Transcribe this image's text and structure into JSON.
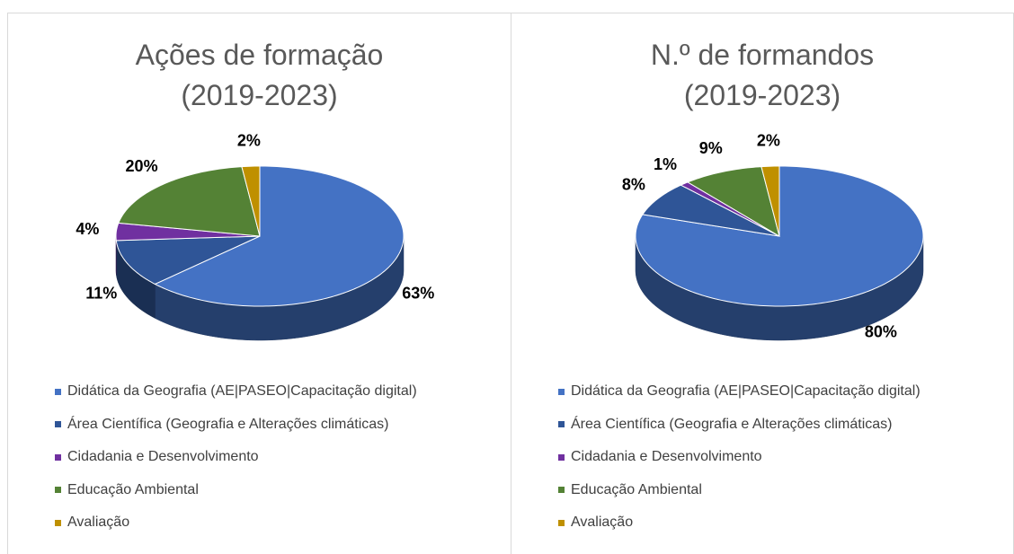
{
  "chart_data": [
    {
      "type": "pie",
      "title": "Ações de formação (2019-2023)",
      "categories": [
        "Didática da Geografia (AE|PASEO|Capacitação digital)",
        "Área Científica (Geografia e Alterações climáticas)",
        "Cidadania e Desenvolvimento",
        "Educação Ambiental",
        "Avaliação"
      ],
      "values": [
        63,
        11,
        4,
        20,
        2
      ],
      "value_labels": [
        "63%",
        "11%",
        "4%",
        "20%",
        "2%"
      ],
      "colors": [
        "#4472c4",
        "#2f5597",
        "#7030a0",
        "#548235",
        "#bf9000"
      ]
    },
    {
      "type": "pie",
      "title": "N.º de formandos (2019-2023)",
      "categories": [
        "Didática da Geografia (AE|PASEO|Capacitação digital)",
        "Área Científica (Geografia e Alterações climáticas)",
        "Cidadania e Desenvolvimento",
        "Educação Ambiental",
        "Avaliação"
      ],
      "values": [
        80,
        8,
        1,
        9,
        2
      ],
      "value_labels": [
        "80%",
        "8%",
        "1%",
        "9%",
        "2%"
      ],
      "colors": [
        "#4472c4",
        "#2f5597",
        "#7030a0",
        "#548235",
        "#bf9000"
      ]
    }
  ]
}
